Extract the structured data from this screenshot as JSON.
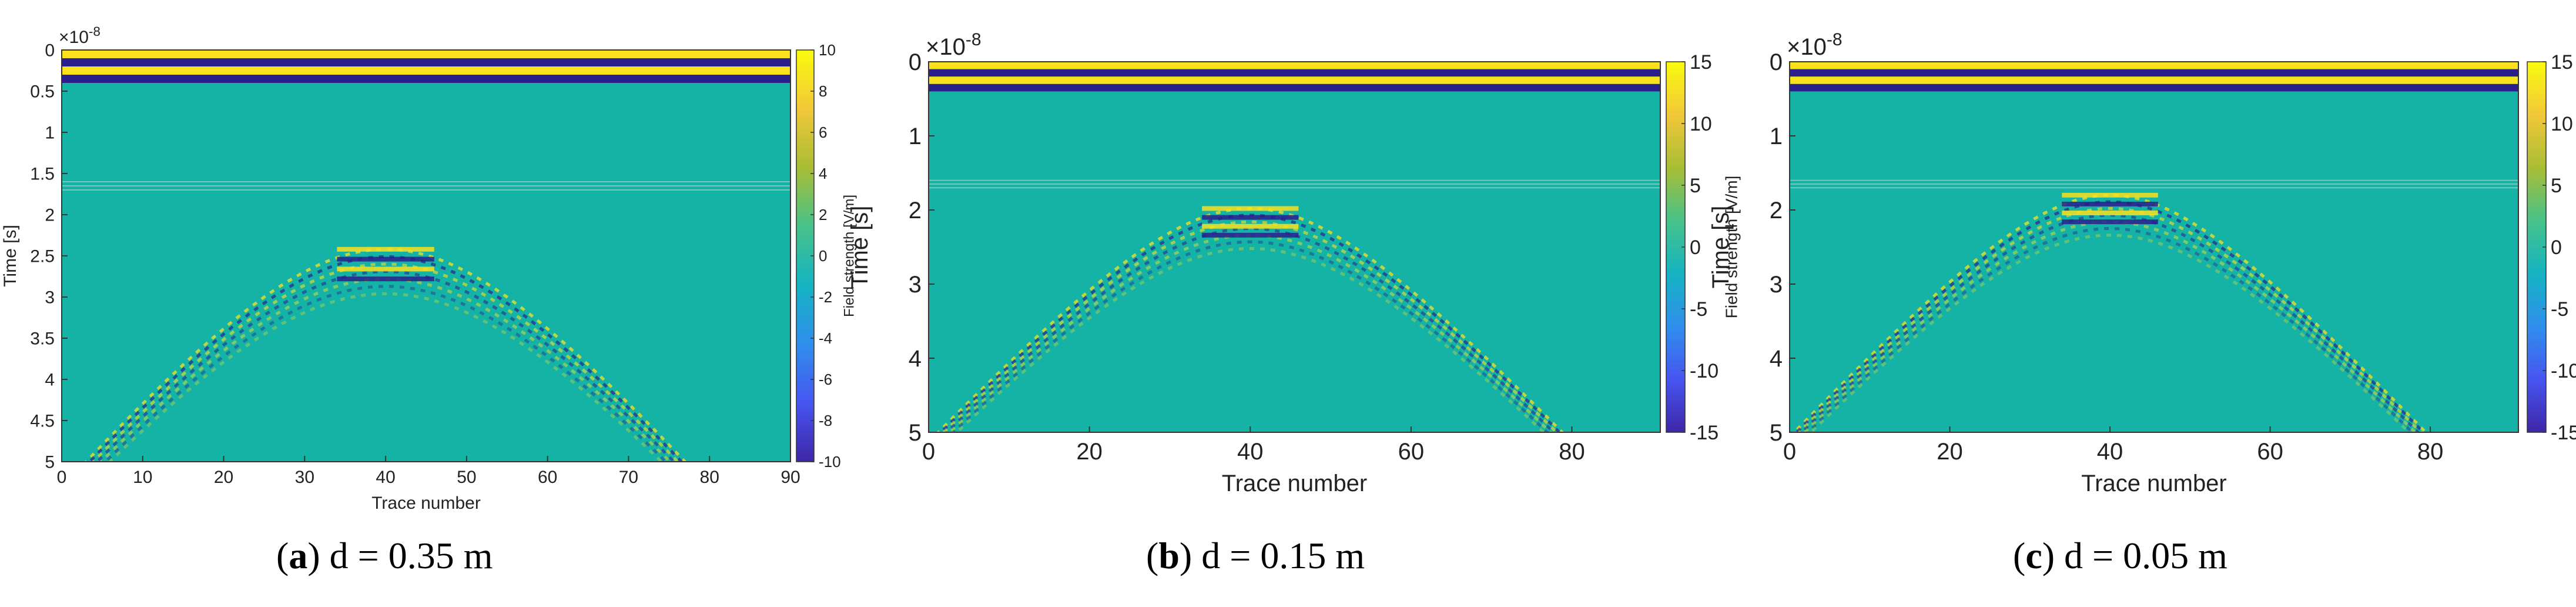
{
  "chart_data": [
    {
      "type": "heatmap",
      "caption_letter": "a",
      "caption_text": "d = 0.35 m",
      "xlabel": "Trace number",
      "ylabel": "Time [s]",
      "colorbar_label": "Field strength [V/m]",
      "exponent_label": "×10",
      "exponent_power": "-8",
      "xlim": [
        0,
        90
      ],
      "ylim": [
        0,
        5
      ],
      "x_ticks": [
        "0",
        "10",
        "20",
        "30",
        "40",
        "50",
        "60",
        "70",
        "80",
        "90"
      ],
      "y_ticks": [
        "0",
        "0.5",
        "1",
        "1.5",
        "2",
        "2.5",
        "3",
        "3.5",
        "4",
        "4.5",
        "5"
      ],
      "colorbar_range": [
        -10,
        10
      ],
      "colorbar_ticks": [
        "10",
        "8",
        "6",
        "4",
        "2",
        "0",
        "-2",
        "-4",
        "-6",
        "-8",
        "-10"
      ],
      "hyperbola_apex": {
        "trace": 40,
        "time": 2.42
      },
      "direct_wave_times": [
        0.05,
        0.15,
        0.25,
        0.35
      ],
      "faint_reflection_times": [
        1.6,
        1.65,
        1.7
      ]
    },
    {
      "type": "heatmap",
      "caption_letter": "b",
      "caption_text": "d = 0.15 m",
      "xlabel": "Trace number",
      "ylabel": "Time [s]",
      "colorbar_label": "Field strength [V/m]",
      "exponent_label": "×10",
      "exponent_power": "-8",
      "xlim": [
        0,
        91
      ],
      "ylim": [
        0,
        5
      ],
      "x_ticks": [
        "0",
        "20",
        "40",
        "60",
        "80"
      ],
      "y_ticks": [
        "0",
        "1",
        "2",
        "3",
        "4",
        "5"
      ],
      "colorbar_range": [
        -15,
        15
      ],
      "colorbar_ticks": [
        "15",
        "10",
        "5",
        "0",
        "-5",
        "-10",
        "-15"
      ],
      "hyperbola_apex": {
        "trace": 40,
        "time": 1.98
      },
      "direct_wave_times": [
        0.05,
        0.15,
        0.25,
        0.35
      ],
      "faint_reflection_times": [
        1.6,
        1.65,
        1.7
      ]
    },
    {
      "type": "heatmap",
      "caption_letter": "c",
      "caption_text": "d = 0.05 m",
      "xlabel": "Trace number",
      "ylabel": "Time [s]",
      "colorbar_label": "Field strength [V/m]",
      "exponent_label": "×10",
      "exponent_power": "-8",
      "xlim": [
        0,
        91
      ],
      "ylim": [
        0,
        5
      ],
      "x_ticks": [
        "0",
        "20",
        "40",
        "60",
        "80"
      ],
      "y_ticks": [
        "0",
        "1",
        "2",
        "3",
        "4",
        "5"
      ],
      "colorbar_range": [
        -15,
        15
      ],
      "colorbar_ticks": [
        "15",
        "10",
        "5",
        "0",
        "-5",
        "-10",
        "-15"
      ],
      "hyperbola_apex": {
        "trace": 40,
        "time": 1.8
      },
      "direct_wave_times": [
        0.05,
        0.15,
        0.25,
        0.35
      ],
      "faint_reflection_times": [
        1.6,
        1.65,
        1.7
      ]
    }
  ],
  "colors": {
    "background_field": "#14b3a6",
    "positive_peak": "#f9e11e",
    "negative_peak": "#2a1d8c",
    "colormap": [
      "#3e26a8",
      "#4755f0",
      "#2f8fed",
      "#15b3c2",
      "#47c28a",
      "#a9bd35",
      "#f2c838",
      "#f9fb0e"
    ]
  }
}
